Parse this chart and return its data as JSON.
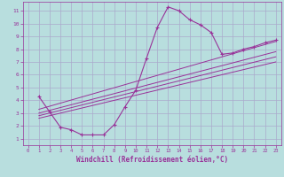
{
  "bg_color": "#b8dede",
  "grid_color": "#aaaacc",
  "line_color": "#993399",
  "marker_color": "#993399",
  "xlabel": "Windchill (Refroidissement éolien,°C)",
  "xlabel_color": "#993399",
  "tick_color": "#993399",
  "xlim": [
    -0.5,
    23.5
  ],
  "ylim": [
    0.5,
    11.7
  ],
  "xticks": [
    0,
    1,
    2,
    3,
    4,
    5,
    6,
    7,
    8,
    9,
    10,
    11,
    12,
    13,
    14,
    15,
    16,
    17,
    18,
    19,
    20,
    21,
    22,
    23
  ],
  "yticks": [
    1,
    2,
    3,
    4,
    5,
    6,
    7,
    8,
    9,
    10,
    11
  ],
  "curve1_x": [
    1,
    2,
    3,
    4,
    5,
    6,
    7,
    8,
    9,
    10,
    11,
    12,
    13,
    14,
    15,
    16,
    17,
    18,
    19,
    20,
    21,
    22,
    23
  ],
  "curve1_y": [
    4.3,
    3.1,
    1.9,
    1.7,
    1.3,
    1.3,
    1.3,
    2.1,
    3.5,
    4.8,
    7.3,
    9.7,
    11.3,
    11.0,
    10.3,
    9.9,
    9.3,
    7.6,
    7.7,
    8.0,
    8.2,
    8.5,
    8.7
  ],
  "line2_x": [
    1,
    23
  ],
  "line2_y": [
    3.3,
    8.6
  ],
  "line3_x": [
    1,
    23
  ],
  "line3_y": [
    3.0,
    7.8
  ],
  "line4_x": [
    1,
    23
  ],
  "line4_y": [
    2.8,
    7.4
  ],
  "line5_x": [
    1,
    23
  ],
  "line5_y": [
    2.6,
    7.0
  ]
}
